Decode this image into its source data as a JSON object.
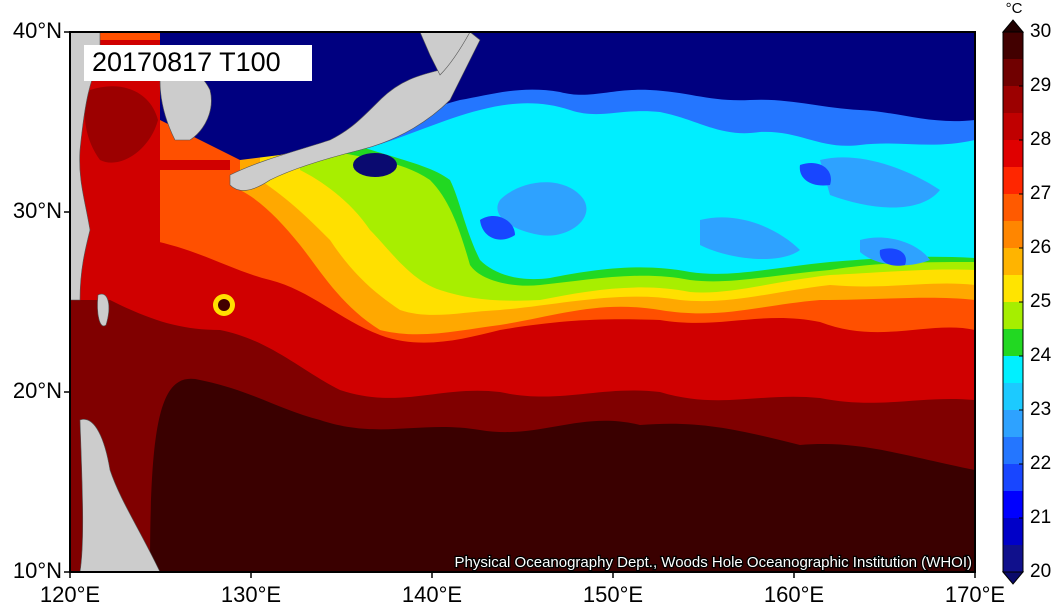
{
  "map": {
    "title": "20170817 T100",
    "credit": "Physical Oceanography Dept., Woods Hole Oceanographic Institution (WHOI)",
    "xlim": [
      120,
      170
    ],
    "ylim": [
      10,
      40
    ],
    "xticks": [
      {
        "value": 120,
        "label": "120°E"
      },
      {
        "value": 130,
        "label": "130°E"
      },
      {
        "value": 140,
        "label": "140°E"
      },
      {
        "value": 150,
        "label": "150°E"
      },
      {
        "value": 160,
        "label": "160°E"
      },
      {
        "value": 170,
        "label": "170°E"
      }
    ],
    "yticks": [
      {
        "value": 10,
        "label": "10°N"
      },
      {
        "value": 20,
        "label": "20°N"
      },
      {
        "value": 30,
        "label": "30°N"
      },
      {
        "value": 40,
        "label": "40°N"
      }
    ],
    "colorbar": {
      "unit": "°C",
      "lim": [
        20,
        30
      ],
      "ticks": [
        20,
        21,
        22,
        23,
        24,
        25,
        26,
        27,
        28,
        29,
        30
      ],
      "colors": [
        "#10108c",
        "#0000c8",
        "#0000ff",
        "#1846ff",
        "#2476ff",
        "#2ea2ff",
        "#1ccaff",
        "#00f0ff",
        "#22d822",
        "#a6ee00",
        "#ffe400",
        "#ffb400",
        "#ff8600",
        "#ff5a00",
        "#ff2600",
        "#e00000",
        "#c00000",
        "#9c0000",
        "#700000",
        "#420000"
      ]
    }
  }
}
